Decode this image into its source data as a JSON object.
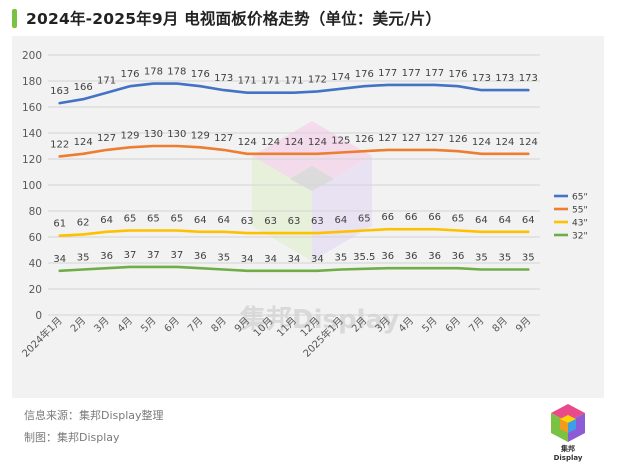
{
  "header": {
    "title": "2024年-2025年9月 电视面板价格走势（单位：美元/片）"
  },
  "footer": {
    "source": "信息来源：集邦Display整理",
    "maker": "制图：集邦Display"
  },
  "watermark": {
    "text": "集邦Display"
  },
  "logo": {
    "text": "集邦Display"
  },
  "colors": {
    "accent": "#7cc242",
    "s65": "#4472c4",
    "s55": "#ed7d31",
    "s43": "#ffc000",
    "s32": "#70ad47"
  },
  "chart_data": {
    "type": "line",
    "title": "2024年-2025年9月 电视面板价格走势（单位：美元/片）",
    "xlabel": "",
    "ylabel": "",
    "ylim": [
      0,
      200
    ],
    "yticks": [
      0,
      20,
      40,
      60,
      80,
      100,
      120,
      140,
      160,
      180,
      200
    ],
    "grid": true,
    "legend_position": "right",
    "categories": [
      "2024年1月",
      "2月",
      "3月",
      "4月",
      "5月",
      "6月",
      "7月",
      "8月",
      "9月",
      "10月",
      "11月",
      "12月",
      "2025年1月",
      "2月",
      "3月",
      "4月",
      "5月",
      "6月",
      "7月",
      "8月",
      "9月"
    ],
    "series": [
      {
        "name": "65\"",
        "color": "#4472c4",
        "values": [
          163,
          166,
          171,
          176,
          178,
          178,
          176,
          173,
          171,
          171,
          171,
          172,
          174,
          176,
          177,
          177,
          177,
          176,
          173,
          173,
          173
        ],
        "labels": [
          "163",
          "166",
          "171",
          "176",
          "178",
          "178",
          "176",
          "173",
          "171",
          "171",
          "171",
          "172",
          "174",
          "176",
          "177",
          "177",
          "177",
          "176",
          "173",
          "173",
          "173"
        ]
      },
      {
        "name": "55\"",
        "color": "#ed7d31",
        "values": [
          122,
          124,
          127,
          129,
          130,
          130,
          129,
          127,
          124,
          124,
          124,
          124,
          125,
          126,
          127,
          127,
          127,
          126,
          124,
          124,
          124
        ],
        "labels": [
          "122",
          "124",
          "127",
          "129",
          "130",
          "130",
          "129",
          "127",
          "124",
          "124",
          "124",
          "124",
          "125",
          "126",
          "127",
          "127",
          "127",
          "126",
          "124",
          "124",
          "124"
        ]
      },
      {
        "name": "43\"",
        "color": "#ffc000",
        "values": [
          61,
          62,
          64,
          65,
          65,
          65,
          64,
          64,
          63,
          63,
          63,
          63,
          64,
          65,
          66,
          66,
          66,
          65,
          64,
          64,
          64
        ],
        "labels": [
          "61",
          "62",
          "64",
          "65",
          "65",
          "65",
          "64",
          "64",
          "63",
          "63",
          "63",
          "63",
          "64",
          "65",
          "66",
          "66",
          "66",
          "65",
          "64",
          "64",
          "64"
        ]
      },
      {
        "name": "32\"",
        "color": "#70ad47",
        "values": [
          34,
          35,
          36,
          37,
          37,
          37,
          36,
          35,
          34,
          34,
          34,
          34,
          35,
          35.5,
          36,
          36,
          36,
          36,
          35,
          35,
          35
        ],
        "labels": [
          "34",
          "35",
          "36",
          "37",
          "37",
          "37",
          "36",
          "35",
          "34",
          "34",
          "34",
          "34",
          "35",
          "35.5",
          "36",
          "36",
          "36",
          "36",
          "35",
          "35",
          "35"
        ]
      }
    ]
  }
}
